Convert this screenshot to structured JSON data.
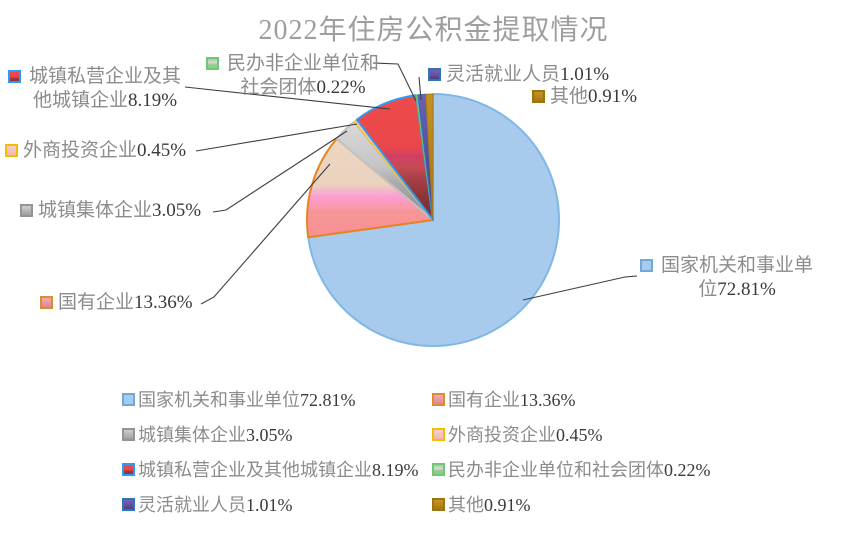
{
  "title": "2022年住房公积金提取情况",
  "chart_data": {
    "type": "pie",
    "title": "2022年住房公积金提取情况",
    "unit": "%",
    "start_angle_deg": 0,
    "direction": "clockwise",
    "legend_position": "bottom",
    "categories": [
      "国家机关和事业单位",
      "国有企业",
      "城镇集体企业",
      "外商投资企业",
      "城镇私营企业及其他城镇企业",
      "民办非企业单位和社会团体",
      "灵活就业人员",
      "其他"
    ],
    "values": [
      72.81,
      13.36,
      3.05,
      0.45,
      8.19,
      0.22,
      1.01,
      0.91
    ],
    "series": [
      {
        "label": "国家机关和事业单位",
        "value": 72.81,
        "display": "72.81%",
        "fill": "#A8CAEC",
        "stroke": "#7FB8E6",
        "stroke_width": 2,
        "marker_stops": [
          [
            0,
            "#A8CAEC"
          ],
          [
            1,
            "#A8CAEC"
          ]
        ],
        "marker_border": "#6FA8DC"
      },
      {
        "label": "国有企业",
        "value": 13.36,
        "display": "13.36%",
        "fill_stops": [
          [
            0,
            "#EDD7C3"
          ],
          [
            0.52,
            "#EAD2BE"
          ],
          [
            0.62,
            "#FC9ED3"
          ],
          [
            0.68,
            "#FA9BB8"
          ],
          [
            0.75,
            "#F69597"
          ],
          [
            1,
            "#F59093"
          ]
        ],
        "stroke": "#E8831D",
        "stroke_width": 2,
        "marker_stops": [
          [
            0,
            "#EFADA9"
          ],
          [
            1,
            "#E2868E"
          ]
        ],
        "marker_border": "#D98E35"
      },
      {
        "label": "城镇集体企业",
        "value": 3.05,
        "display": "3.05%",
        "fill_stops": [
          [
            0,
            "#DADADA"
          ],
          [
            0.45,
            "#C6C6C6"
          ],
          [
            0.62,
            "#ADADAD"
          ],
          [
            0.8,
            "#9A9A9A"
          ],
          [
            1,
            "#8F8F8F"
          ]
        ],
        "stroke": "#C2C2C2",
        "stroke_width": 2,
        "marker_stops": [
          [
            0,
            "#CFCFCF"
          ],
          [
            1,
            "#9F9F9F"
          ]
        ],
        "marker_border": "#949494"
      },
      {
        "label": "外商投资企业",
        "value": 0.45,
        "display": "0.45%",
        "fill": "#F7C9AB",
        "stroke": "#FFC000",
        "stroke_width": 1,
        "marker_stops": [
          [
            0,
            "#F8D2CA"
          ],
          [
            1,
            "#F3B4AE"
          ]
        ],
        "marker_border": "#F0BE06"
      },
      {
        "label": "城镇私营企业及其他城镇企业",
        "value": 8.19,
        "display": "8.19%",
        "fill_stops": [
          [
            0,
            "#EE4A4C"
          ],
          [
            0.42,
            "#E94749"
          ],
          [
            0.5,
            "#D04064"
          ],
          [
            0.58,
            "#C44B54"
          ],
          [
            0.68,
            "#A63F46"
          ],
          [
            0.82,
            "#8A3439"
          ],
          [
            1,
            "#742D32"
          ]
        ],
        "stroke": "#2E9BF0",
        "stroke_width": 2,
        "marker_stops": [
          [
            0,
            "#EE4A4C"
          ],
          [
            0.55,
            "#E4464B"
          ],
          [
            0.7,
            "#9A3A40"
          ],
          [
            1,
            "#8F3338"
          ]
        ],
        "marker_border": "#2E9BF0"
      },
      {
        "label": "民办非企业单位和社会团体",
        "value": 0.22,
        "display": "0.22%",
        "fill": "#82CF82",
        "stroke": "#64C464",
        "stroke_width": 1,
        "marker_stops": [
          [
            0,
            "#96D696"
          ],
          [
            0.4,
            "#E3D3DA"
          ],
          [
            0.65,
            "#8FD18F"
          ],
          [
            1,
            "#86CD86"
          ]
        ],
        "marker_border": "#6FC86F"
      },
      {
        "label": "灵活就业人员",
        "value": 1.01,
        "display": "1.01%",
        "fill_stops": [
          [
            0,
            "#6A61B5"
          ],
          [
            0.5,
            "#55509E"
          ],
          [
            1,
            "#3E3B7C"
          ]
        ],
        "stroke": "#3A6BBE",
        "stroke_width": 1,
        "marker_stops": [
          [
            0,
            "#7A5FB0"
          ],
          [
            0.55,
            "#64519F"
          ],
          [
            1,
            "#453F85"
          ]
        ],
        "marker_border": "#2E75B6"
      },
      {
        "label": "其他",
        "value": 0.91,
        "display": "0.91%",
        "fill_stops": [
          [
            0,
            "#C3931F"
          ],
          [
            1,
            "#A37711"
          ]
        ],
        "stroke": "#AD7916",
        "stroke_width": 1,
        "marker_stops": [
          [
            0,
            "#C79325"
          ],
          [
            1,
            "#A47811"
          ]
        ],
        "marker_border": "#9E7312"
      }
    ]
  },
  "colors": {
    "background": "#FFFFFF",
    "title_text": "#9E9E9E",
    "label_text": "#8C8C8C",
    "value_text": "#3A3A3A",
    "leader_line": "#3F3F3F"
  }
}
